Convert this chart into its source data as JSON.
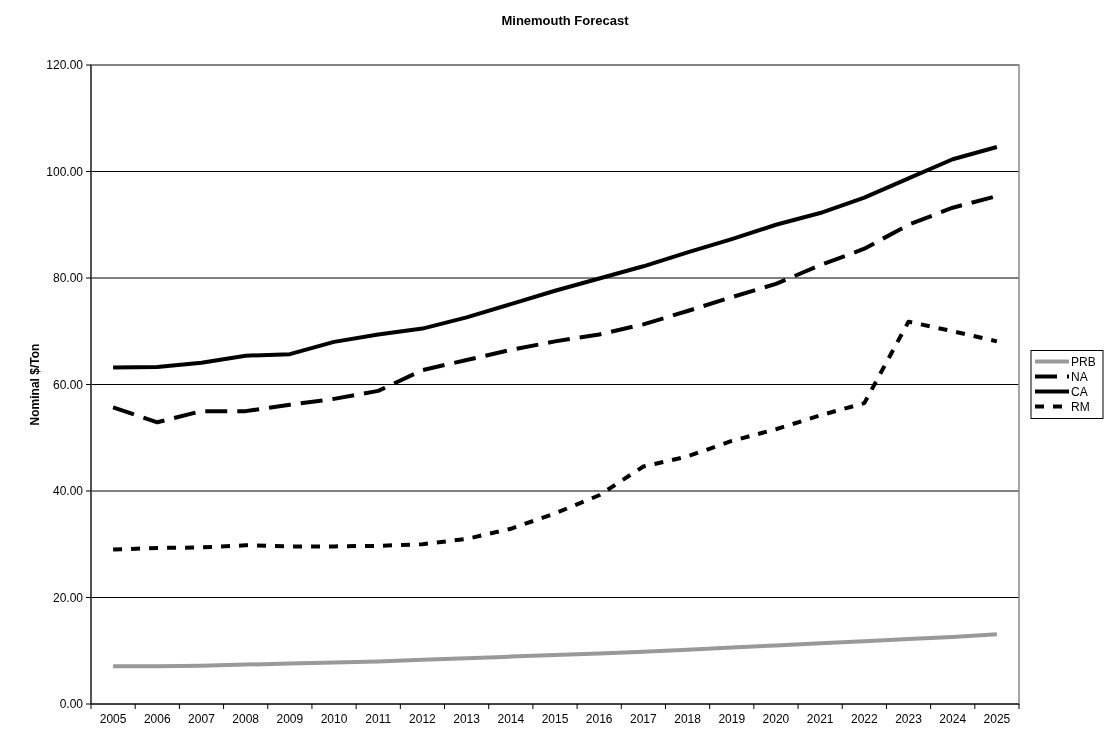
{
  "chart_data": {
    "type": "line",
    "title": "Minemouth Forecast",
    "ylabel": "Nominal $/Ton",
    "categories": [
      "2005",
      "2006",
      "2007",
      "2008",
      "2009",
      "2010",
      "2011",
      "2012",
      "2013",
      "2014",
      "2015",
      "2016",
      "2017",
      "2018",
      "2019",
      "2020",
      "2021",
      "2022",
      "2023",
      "2024",
      "2025"
    ],
    "series": [
      {
        "name": "PRB",
        "color": "#999999",
        "line_style": "solid",
        "values": [
          7.1,
          7.1,
          7.2,
          7.4,
          7.6,
          7.8,
          8.0,
          8.3,
          8.6,
          8.9,
          9.2,
          9.5,
          9.8,
          10.2,
          10.6,
          11.0,
          11.4,
          11.8,
          12.2,
          12.6,
          13.1
        ]
      },
      {
        "name": "NA",
        "color": "#000000",
        "line_style": "dashed",
        "values": [
          55.7,
          52.9,
          55.0,
          55.0,
          56.2,
          57.3,
          58.8,
          62.7,
          64.6,
          66.5,
          68.1,
          69.4,
          71.3,
          73.8,
          76.4,
          78.9,
          82.4,
          85.5,
          90.0,
          93.2,
          95.4
        ]
      },
      {
        "name": "CA",
        "color": "#000000",
        "line_style": "solid",
        "values": [
          63.2,
          63.3,
          64.1,
          65.4,
          65.7,
          68.0,
          69.4,
          70.5,
          72.6,
          75.1,
          77.6,
          79.9,
          82.2,
          84.8,
          87.3,
          90.0,
          92.2,
          95.1,
          98.7,
          102.3,
          104.6
        ]
      },
      {
        "name": "RM",
        "color": "#000000",
        "line_style": "dotted",
        "values": [
          29.0,
          29.3,
          29.4,
          29.8,
          29.6,
          29.6,
          29.7,
          30.0,
          31.0,
          32.9,
          35.8,
          39.2,
          44.6,
          46.5,
          49.4,
          51.6,
          54.2,
          56.5,
          71.8,
          70.0,
          68.1
        ]
      }
    ],
    "ylim": [
      0,
      120
    ],
    "yticks": [
      {
        "value": 0,
        "label": "0.00"
      },
      {
        "value": 20,
        "label": "20.00"
      },
      {
        "value": 40,
        "label": "40.00"
      },
      {
        "value": 60,
        "label": "60.00"
      },
      {
        "value": 80,
        "label": "80.00"
      },
      {
        "value": 100,
        "label": "100.00"
      },
      {
        "value": 120,
        "label": "120.00"
      }
    ],
    "grid": "y",
    "legend": "right"
  }
}
